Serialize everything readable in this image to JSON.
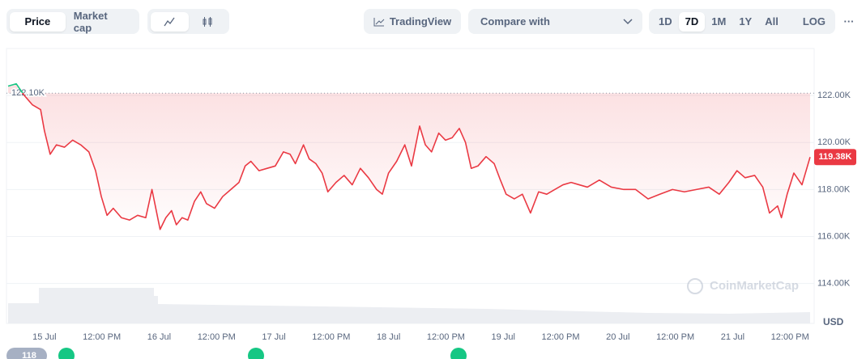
{
  "toolbar": {
    "modes": [
      "Price",
      "Market cap"
    ],
    "tradingview": "TradingView",
    "compare": "Compare with",
    "ranges": [
      "1D",
      "7D",
      "1M",
      "1Y",
      "All"
    ],
    "log": "LOG",
    "more": "···"
  },
  "watermark": "CoinMarketCap",
  "badge": "118",
  "chart_data": {
    "type": "line",
    "ylabel": "USD",
    "x": [
      -7.6,
      -5.9,
      -4.2,
      -2.5,
      -0.8,
      0,
      1.2,
      2.5,
      4.2,
      5.9,
      7.6,
      9.3,
      10.7,
      11.9,
      13.1,
      14.4,
      16.1,
      17.8,
      19.5,
      21.2,
      22.5,
      23.7,
      24.2,
      25.4,
      26.6,
      27.6,
      28.8,
      30.0,
      31.4,
      32.7,
      33.9,
      35.6,
      37.3,
      39.0,
      40.7,
      42.0,
      43.2,
      44.9,
      46.6,
      48.3,
      50.0,
      51.4,
      52.5,
      54.2,
      55.4,
      56.8,
      58.1,
      59.3,
      61.0,
      62.7,
      64.4,
      66.1,
      67.8,
      69.5,
      70.7,
      72.0,
      73.7,
      75.4,
      76.8,
      78.5,
      79.7,
      81.0,
      82.5,
      83.9,
      85.3,
      86.8,
      88.1,
      89.3,
      90.7,
      92.4,
      94.1,
      95.4,
      96.6,
      98.3,
      100.0,
      101.7,
      103.4,
      105.1,
      106.8,
      108.5,
      110.2,
      111.9,
      113.6,
      116.1,
      118.6,
      121.2,
      123.7,
      126.3,
      128.8,
      131.4,
      133.9,
      136.4,
      139.0,
      141.2,
      143.2,
      144.9,
      146.6,
      148.6,
      150.3,
      151.7,
      153.4,
      154.2,
      155.4,
      156.8,
      158.5,
      160.2
    ],
    "series": [
      {
        "color": "#ea3943",
        "above_color": "#16c784",
        "values": [
          122400,
          122500,
          122000,
          121600,
          121400,
          120500,
          119500,
          119900,
          119800,
          120100,
          119900,
          119600,
          118800,
          117700,
          116900,
          117200,
          116800,
          116700,
          116900,
          116800,
          118000,
          116800,
          116300,
          116800,
          117100,
          116500,
          116800,
          116700,
          117500,
          117900,
          117400,
          117200,
          117700,
          118000,
          118300,
          119000,
          119200,
          118800,
          118900,
          119000,
          119600,
          119500,
          119100,
          119900,
          119300,
          119100,
          118700,
          117900,
          118300,
          118600,
          118200,
          118900,
          118500,
          118000,
          117800,
          118700,
          119200,
          119900,
          119000,
          120700,
          119900,
          119600,
          120400,
          120100,
          120200,
          120600,
          120000,
          118900,
          119000,
          119400,
          119100,
          118400,
          117800,
          117600,
          117800,
          117000,
          117900,
          117800,
          118000,
          118200,
          118300,
          118200,
          118100,
          118400,
          118100,
          118000,
          118000,
          117600,
          117800,
          118000,
          117900,
          118000,
          118100,
          117800,
          118300,
          118800,
          118500,
          118600,
          118100,
          117000,
          117300,
          116800,
          117800,
          118700,
          118200,
          119380
        ]
      }
    ],
    "reference_line": {
      "value": 122100,
      "label": "122.10K"
    },
    "last_price": {
      "value": 119380,
      "label": "119.38K"
    },
    "xlim": [
      -7.6,
      160.2
    ],
    "xticks": [
      {
        "value": 0,
        "label": "15 Jul"
      },
      {
        "value": 12,
        "label": "12:00 PM"
      },
      {
        "value": 24,
        "label": "16 Jul"
      },
      {
        "value": 36,
        "label": "12:00 PM"
      },
      {
        "value": 48,
        "label": "17 Jul"
      },
      {
        "value": 60,
        "label": "12:00 PM"
      },
      {
        "value": 72,
        "label": "18 Jul"
      },
      {
        "value": 84,
        "label": "12:00 PM"
      },
      {
        "value": 96,
        "label": "19 Jul"
      },
      {
        "value": 108,
        "label": "12:00 PM"
      },
      {
        "value": 120,
        "label": "20 Jul"
      },
      {
        "value": 132,
        "label": "12:00 PM"
      },
      {
        "value": 144,
        "label": "21 Jul"
      },
      {
        "value": 156,
        "label": "12:00 PM"
      }
    ],
    "ylim": [
      112300,
      124000
    ],
    "yticks": [
      {
        "value": 114000,
        "label": "114.00K"
      },
      {
        "value": 116000,
        "label": "116.00K"
      },
      {
        "value": 118000,
        "label": "118.00K"
      },
      {
        "value": 120000,
        "label": "120.00K"
      },
      {
        "value": 122000,
        "label": "122.00K"
      }
    ],
    "grid": true
  }
}
